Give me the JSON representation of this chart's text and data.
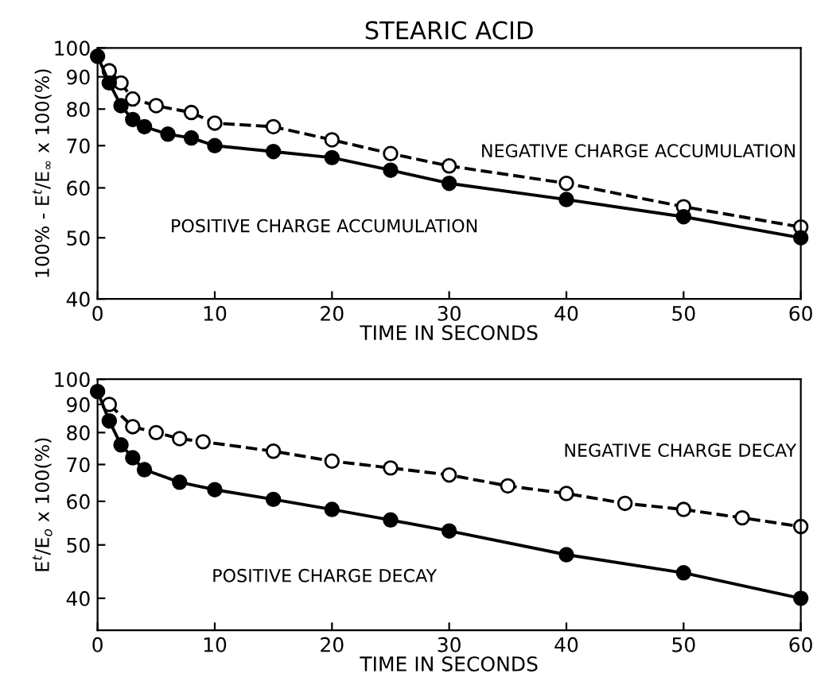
{
  "chart_data": [
    {
      "type": "line",
      "title": "STEARIC ACID",
      "xlabel": "TIME IN SECONDS",
      "ylabel": "100% - E$^{t}$/E$_{∞}$ x 100(%)",
      "log": "y",
      "xlim": [
        0,
        60
      ],
      "xticks": [
        0,
        10,
        20,
        30,
        40,
        50,
        60
      ],
      "ylim": [
        40,
        100
      ],
      "yticks": [
        40,
        50,
        60,
        70,
        80,
        90,
        100
      ],
      "grid": false,
      "legend": false,
      "marker": "circle",
      "series": [
        {
          "name": "NEGATIVE CHARGE ACCUMULATION",
          "color": "#000000",
          "line_style": "dashed",
          "x": [
            1,
            2,
            3,
            5,
            8,
            10,
            15,
            20,
            25,
            30,
            40,
            50,
            60
          ],
          "values": [
            92,
            88,
            83,
            81,
            79,
            76,
            75,
            71.5,
            68,
            65,
            61,
            56,
            52
          ]
        },
        {
          "name": "POSITIVE CHARGE ACCUMULATION",
          "color": "#000000",
          "line_style": "solid",
          "x": [
            0,
            1,
            2,
            3,
            4,
            6,
            8,
            10,
            15,
            20,
            25,
            30,
            40,
            50,
            60
          ],
          "values": [
            97,
            88,
            81,
            77,
            75,
            73,
            72,
            70,
            68.5,
            67,
            64,
            61,
            57.5,
            54,
            50
          ]
        }
      ]
    },
    {
      "type": "line",
      "xlabel": "TIME IN SECONDS",
      "ylabel": "E$^{t}$/E$_{o}$ x 100(%)",
      "log": "y",
      "xlim": [
        0,
        60
      ],
      "xticks": [
        0,
        10,
        20,
        30,
        40,
        50,
        60
      ],
      "ylim": [
        35,
        100
      ],
      "yticks": [
        40,
        50,
        60,
        70,
        80,
        90,
        100
      ],
      "grid": false,
      "legend": false,
      "marker": "circle",
      "series": [
        {
          "name": "NEGATIVE CHARGE DECAY",
          "color": "#000000",
          "line_style": "dashed",
          "x": [
            1,
            3,
            5,
            7,
            9,
            15,
            20,
            25,
            30,
            35,
            40,
            45,
            50,
            55,
            60
          ],
          "values": [
            90,
            82,
            80,
            78,
            77,
            74,
            71,
            69,
            67,
            64,
            62,
            59.5,
            58,
            56,
            54
          ]
        },
        {
          "name": "POSITIVE CHARGE DECAY",
          "color": "#000000",
          "line_style": "solid",
          "x": [
            0,
            1,
            2,
            3,
            4,
            7,
            10,
            15,
            20,
            25,
            30,
            40,
            50,
            60
          ],
          "values": [
            95,
            84,
            76,
            72,
            68.5,
            65,
            63,
            60.5,
            58,
            55.5,
            53,
            48,
            44.5,
            40
          ]
        }
      ]
    }
  ]
}
